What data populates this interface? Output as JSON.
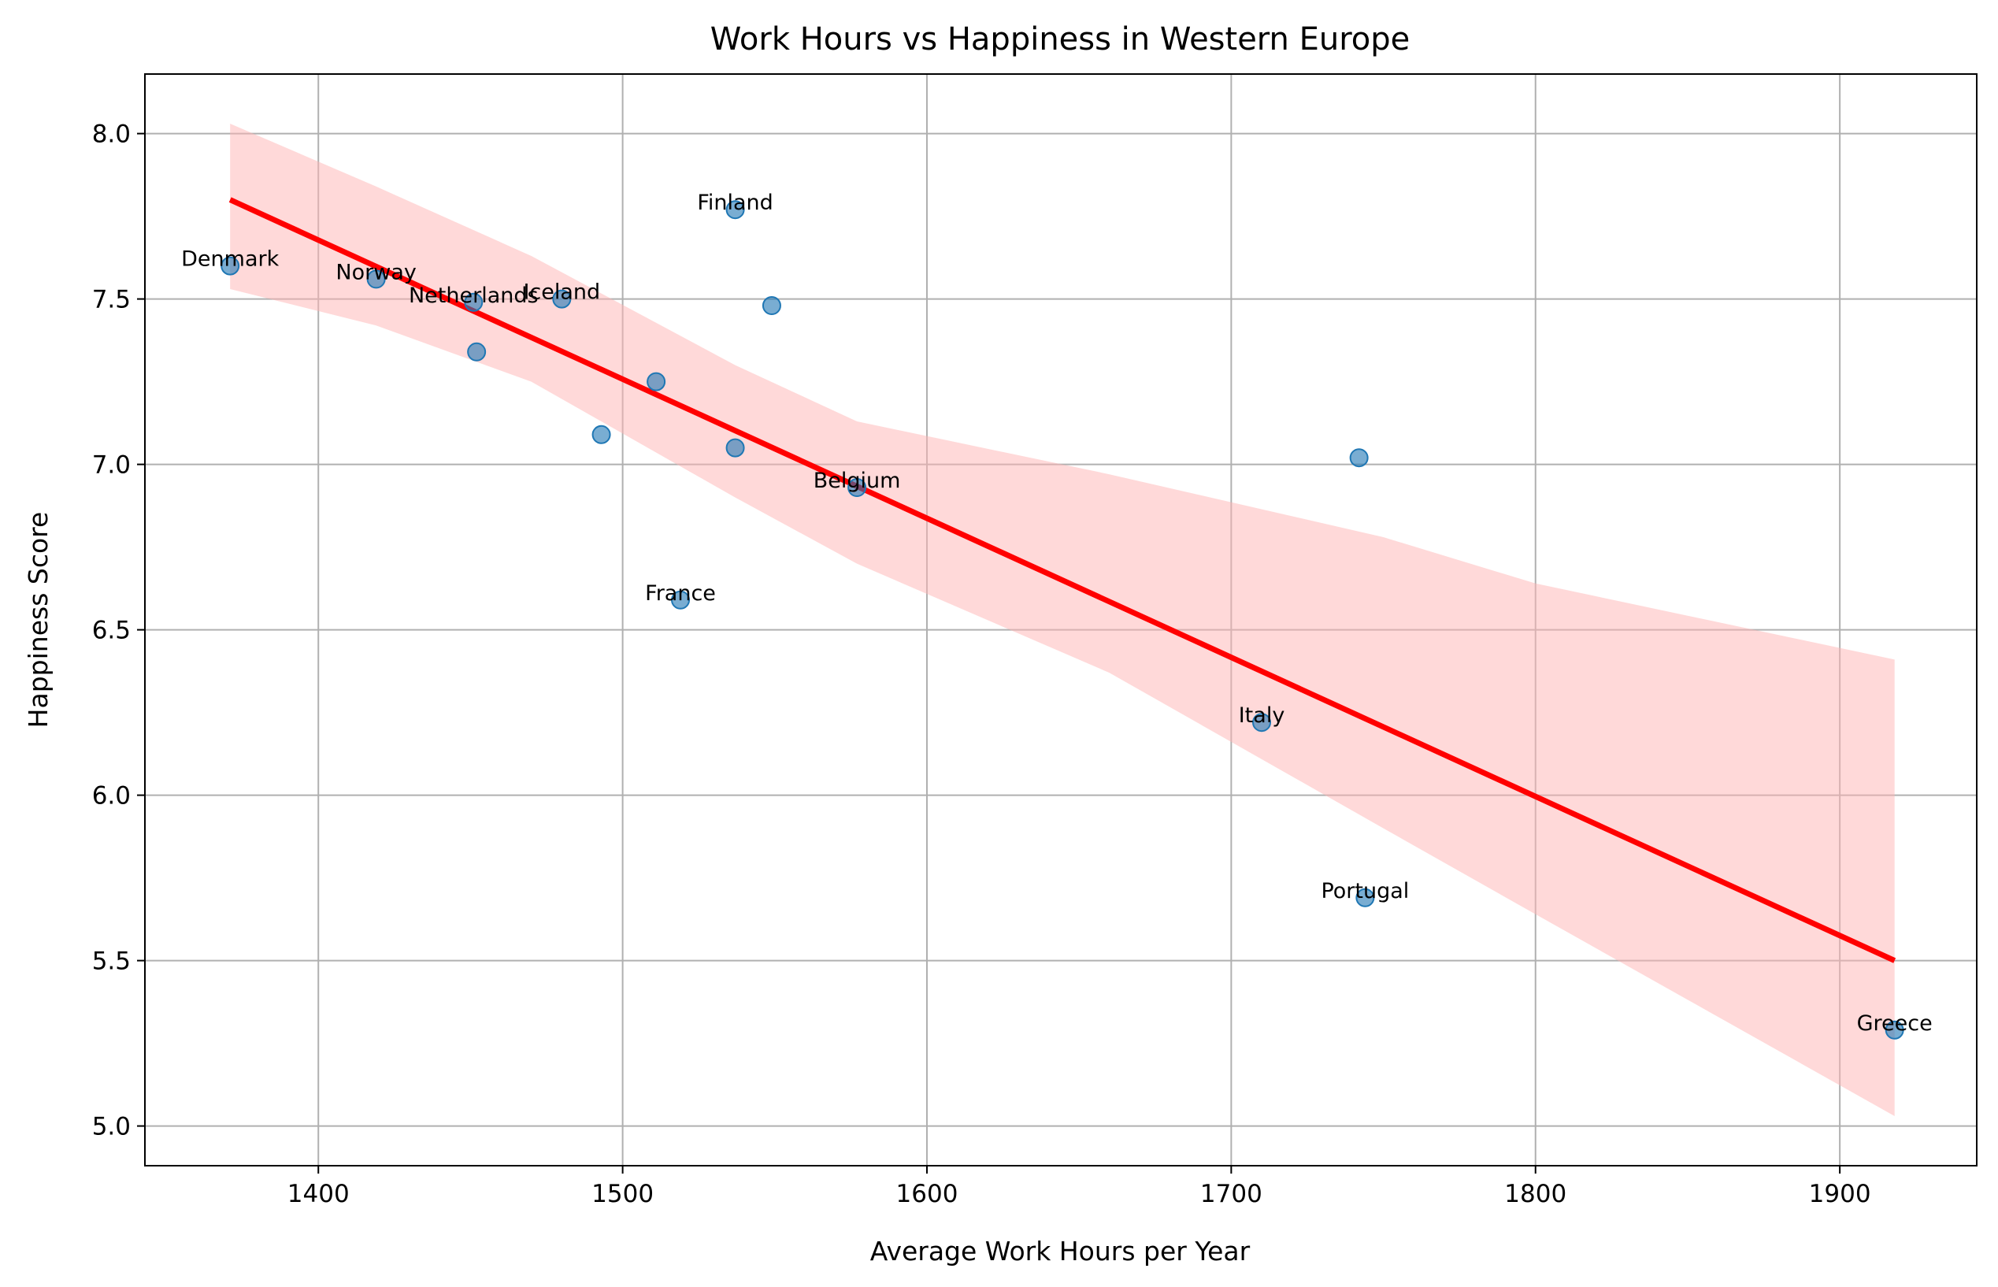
{
  "chart_data": {
    "type": "scatter",
    "title": "Work Hours vs Happiness in Western Europe",
    "xlabel": "Average Work Hours per Year",
    "ylabel": "Happiness Score",
    "xlim": [
      1343,
      1945
    ],
    "ylim": [
      4.88,
      8.18
    ],
    "xticks": [
      1400,
      1500,
      1600,
      1700,
      1800,
      1900
    ],
    "xtick_labels": [
      "1400",
      "1500",
      "1600",
      "1700",
      "1800",
      "1900"
    ],
    "yticks": [
      5.0,
      5.5,
      6.0,
      6.5,
      7.0,
      7.5,
      8.0
    ],
    "ytick_labels": [
      "5.0",
      "5.5",
      "6.0",
      "6.5",
      "7.0",
      "7.5",
      "8.0"
    ],
    "grid": true,
    "point_color": "#1f77b4",
    "line_color": "#ff0000",
    "band_color": "#ffb3b3",
    "points": [
      {
        "x": 1371,
        "y": 7.6,
        "label": "Denmark"
      },
      {
        "x": 1419,
        "y": 7.56,
        "label": "Norway"
      },
      {
        "x": 1451,
        "y": 7.49,
        "label": "Netherlands"
      },
      {
        "x": 1480,
        "y": 7.5,
        "label": "Iceland"
      },
      {
        "x": 1537,
        "y": 7.77,
        "label": "Finland"
      },
      {
        "x": 1577,
        "y": 6.93,
        "label": "Belgium"
      },
      {
        "x": 1519,
        "y": 6.59,
        "label": "France"
      },
      {
        "x": 1710,
        "y": 6.22,
        "label": "Italy"
      },
      {
        "x": 1744,
        "y": 5.69,
        "label": "Portugal"
      },
      {
        "x": 1918,
        "y": 5.29,
        "label": "Greece"
      },
      {
        "x": 1452,
        "y": 7.34,
        "label": ""
      },
      {
        "x": 1549,
        "y": 7.48,
        "label": ""
      },
      {
        "x": 1511,
        "y": 7.25,
        "label": ""
      },
      {
        "x": 1493,
        "y": 7.09,
        "label": ""
      },
      {
        "x": 1537,
        "y": 7.05,
        "label": ""
      },
      {
        "x": 1742,
        "y": 7.02,
        "label": ""
      }
    ],
    "regression_line": {
      "x": [
        1371,
        1918
      ],
      "y": [
        7.8,
        5.5
      ]
    },
    "confidence_band": {
      "x": [
        1371,
        1419,
        1470,
        1537,
        1577,
        1660,
        1750,
        1800,
        1918
      ],
      "upper": [
        8.03,
        7.84,
        7.63,
        7.3,
        7.13,
        6.97,
        6.78,
        6.64,
        6.41
      ],
      "lower": [
        7.53,
        7.42,
        7.25,
        6.9,
        6.7,
        6.37,
        5.9,
        5.64,
        5.03
      ]
    }
  }
}
